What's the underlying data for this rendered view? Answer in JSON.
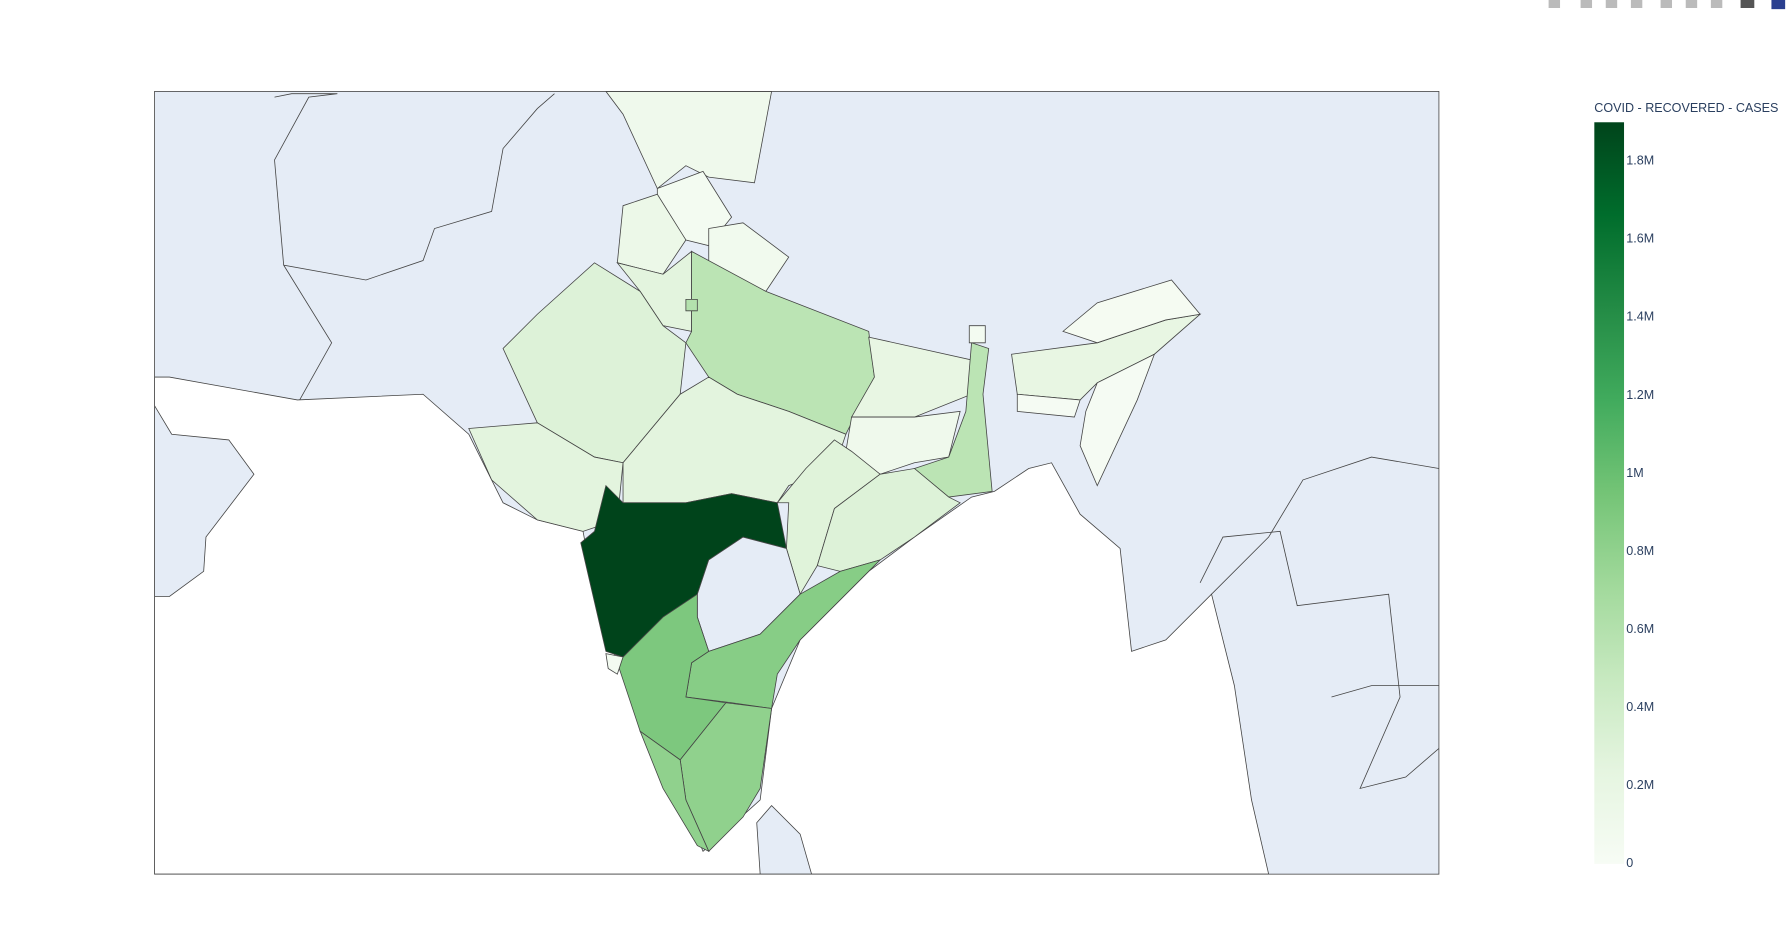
{
  "chart_data": {
    "type": "choropleth",
    "colorbar_title": "COVID - RECOVERED - CASES",
    "values": [
      100000,
      50000,
      150000,
      80000,
      250000,
      600000,
      300000,
      250000,
      550000,
      200000,
      100000,
      550000,
      250000,
      280000,
      300000,
      1900000,
      850000,
      900000,
      50000,
      800000,
      800000,
      200000,
      30000,
      20000,
      20000,
      50000
    ],
    "zlim": [
      0,
      1900000
    ],
    "zticks": [
      {
        "value": 0,
        "label": "0"
      },
      {
        "value": 200000,
        "label": "0.2M"
      },
      {
        "value": 400000,
        "label": "0.4M"
      },
      {
        "value": 600000,
        "label": "0.6M"
      },
      {
        "value": 800000,
        "label": "0.8M"
      },
      {
        "value": 1000000,
        "label": "1M"
      },
      {
        "value": 1200000,
        "label": "1.2M"
      },
      {
        "value": 1400000,
        "label": "1.4M"
      },
      {
        "value": 1600000,
        "label": "1.6M"
      },
      {
        "value": 1800000,
        "label": "1.8M"
      }
    ],
    "colorscale": [
      "#f7fcf5",
      "#e5f5e0",
      "#c7e9c0",
      "#a1d99b",
      "#74c476",
      "#41ab5d",
      "#238b45",
      "#006d2c",
      "#00441b"
    ]
  }
}
